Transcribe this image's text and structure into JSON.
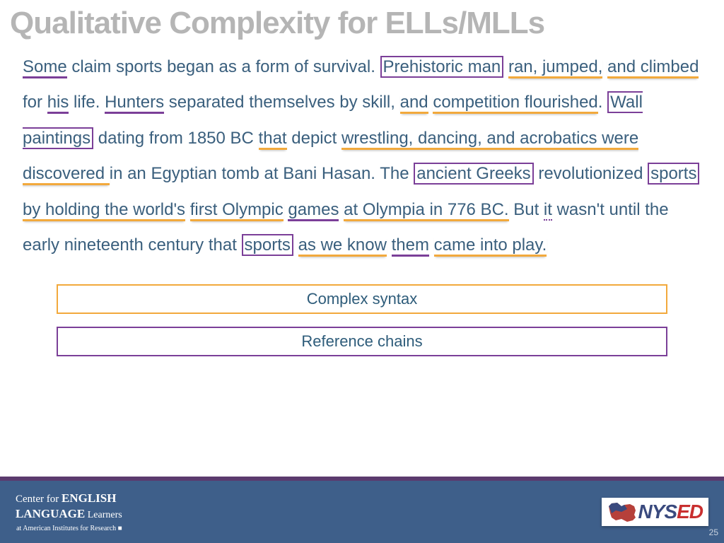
{
  "colors": {
    "title": "#b5b5b5",
    "body_text": "#3a5f7d",
    "underline_orange": "#f2a93c",
    "underline_purple": "#7b3f98",
    "box_purple": "#7b3f98",
    "dotted_purple": "#7b3f98",
    "legend_text": "#2e5c7a",
    "legend_border_orange": "#f2a93c",
    "legend_border_purple": "#7b3f98",
    "footer_bg": "#3e5f8a",
    "footer_stripe": "#5b3a6e",
    "nysed_nys": "#3a4a7e",
    "nysed_ed": "#c92f2f",
    "pagenum": "#c9d3e0"
  },
  "title": "Qualitative Complexity for ELLs/MLLs",
  "passage": {
    "spans": [
      {
        "t": "Some",
        "cls": "u-p",
        "ck": "underline_purple"
      },
      {
        "t": " claim sports began as a form of survival. "
      },
      {
        "t": "Prehistoric man",
        "cls": "box-p",
        "ck": "box_purple"
      },
      {
        "t": " "
      },
      {
        "t": "ran, jumped,",
        "cls": "u-o",
        "ck": "underline_orange"
      },
      {
        "t": " "
      },
      {
        "t": "and climbed",
        "cls": "u-o",
        "ck": "underline_orange"
      },
      {
        "t": " for "
      },
      {
        "t": "his",
        "cls": "u-p",
        "ck": "underline_purple"
      },
      {
        "t": " life. "
      },
      {
        "t": "Hunters",
        "cls": "u-p",
        "ck": "underline_purple"
      },
      {
        "t": " separated themselves by skill, "
      },
      {
        "t": "and",
        "cls": "u-o",
        "ck": "underline_orange"
      },
      {
        "t": " "
      },
      {
        "t": "competition flourished",
        "cls": "u-o",
        "ck": "underline_orange"
      },
      {
        "t": ". "
      },
      {
        "t": "Wall paintings",
        "cls": "box-p",
        "ck": "box_purple"
      },
      {
        "t": " dating from 1850 BC "
      },
      {
        "t": "that",
        "cls": "u-o",
        "ck": "underline_orange"
      },
      {
        "t": " depict "
      },
      {
        "t": "wrestling, dancing, and acrobatics were discovered ",
        "cls": "u-o",
        "ck": "underline_orange"
      },
      {
        "t": "in an Egyptian tomb at Bani Hasan. The "
      },
      {
        "t": "ancient Greeks",
        "cls": "box-p",
        "ck": "box_purple"
      },
      {
        "t": " revolutionized "
      },
      {
        "t": "sports",
        "cls": "box-p",
        "ck": "box_purple"
      },
      {
        "t": " "
      },
      {
        "t": "by holding the world's",
        "cls": "u-o",
        "ck": "underline_orange"
      },
      {
        "t": " "
      },
      {
        "t": "first Olympic",
        "cls": "u-o",
        "ck": "underline_orange"
      },
      {
        "t": " "
      },
      {
        "t": "games",
        "cls": "u-p",
        "ck": "underline_purple"
      },
      {
        "t": " "
      },
      {
        "t": "at Olympia in 776 BC.",
        "cls": "u-o",
        "ck": "underline_orange"
      },
      {
        "t": " But "
      },
      {
        "t": "it",
        "cls": "dotted",
        "ck": "dotted_purple"
      },
      {
        "t": " wasn't until the early nineteenth century that "
      },
      {
        "t": "sports",
        "cls": "box-p",
        "ck": "box_purple"
      },
      {
        "t": " "
      },
      {
        "t": "as we know",
        "cls": "u-o",
        "ck": "underline_orange"
      },
      {
        "t": " "
      },
      {
        "t": "them",
        "cls": "u-p",
        "ck": "underline_purple"
      },
      {
        "t": " "
      },
      {
        "t": "came into play.",
        "cls": "u-o",
        "ck": "underline_orange"
      }
    ]
  },
  "legend": [
    {
      "label": "Complex syntax",
      "border": "legend_border_orange"
    },
    {
      "label": "Reference chains",
      "border": "legend_border_purple"
    }
  ],
  "footer": {
    "cell": {
      "line1_a": "Center for ",
      "line1_b": "ENGLISH",
      "line2_a": "LANGUAGE",
      "line2_b": " Learners",
      "sub": "at American Institutes for Research ■"
    },
    "nysed": {
      "nys": "NYS",
      "ed": "ED"
    },
    "pagenum": "25"
  }
}
